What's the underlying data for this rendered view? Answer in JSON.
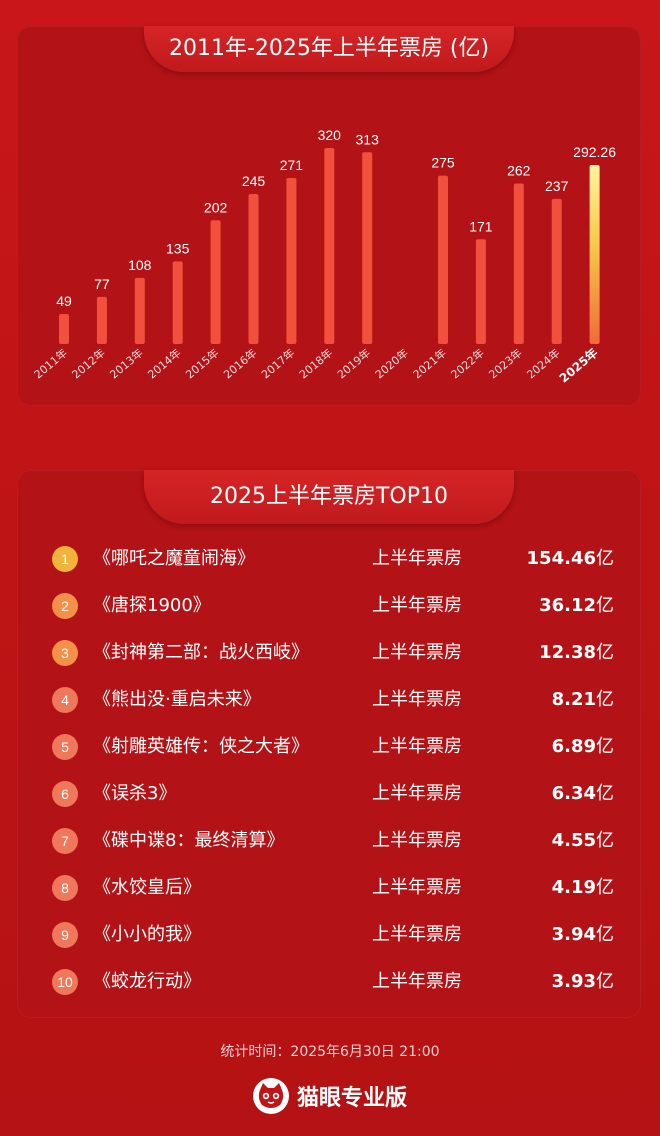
{
  "chart_data": {
    "type": "bar",
    "title": "2011年-2025年上半年票房 (亿)",
    "categories": [
      "2011年",
      "2012年",
      "2013年",
      "2014年",
      "2015年",
      "2016年",
      "2017年",
      "2018年",
      "2019年",
      "2020年",
      "2021年",
      "2022年",
      "2023年",
      "2024年",
      "2025年"
    ],
    "values": [
      49,
      77,
      108,
      135,
      202,
      245,
      271,
      320,
      313,
      null,
      275,
      171,
      262,
      237,
      292.26
    ],
    "value_labels": [
      "49",
      "77",
      "108",
      "135",
      "202",
      "245",
      "271",
      "320",
      "313",
      "",
      "275",
      "171",
      "262",
      "237",
      "292.26"
    ],
    "highlight_index": 14,
    "ylim": [
      0,
      320
    ],
    "grid": false,
    "bar_color": "#f0503c",
    "highlight_color": "#f7d24a"
  },
  "top10": {
    "title": "2025上半年票房TOP10",
    "rows": [
      {
        "rank": "1",
        "title": "《哪吒之魔童闹海》",
        "label": "上半年票房",
        "value": "154.46",
        "unit": "亿"
      },
      {
        "rank": "2",
        "title": "《唐探1900》",
        "label": "上半年票房",
        "value": "36.12",
        "unit": "亿"
      },
      {
        "rank": "3",
        "title": "《封神第二部：战火西岐》",
        "label": "上半年票房",
        "value": "12.38",
        "unit": "亿"
      },
      {
        "rank": "4",
        "title": "《熊出没·重启未来》",
        "label": "上半年票房",
        "value": "8.21",
        "unit": "亿"
      },
      {
        "rank": "5",
        "title": "《射雕英雄传：侠之大者》",
        "label": "上半年票房",
        "value": "6.89",
        "unit": "亿"
      },
      {
        "rank": "6",
        "title": "《误杀3》",
        "label": "上半年票房",
        "value": "6.34",
        "unit": "亿"
      },
      {
        "rank": "7",
        "title": "《碟中谍8：最终清算》",
        "label": "上半年票房",
        "value": "4.55",
        "unit": "亿"
      },
      {
        "rank": "8",
        "title": "《水饺皇后》",
        "label": "上半年票房",
        "value": "4.19",
        "unit": "亿"
      },
      {
        "rank": "9",
        "title": "《小小的我》",
        "label": "上半年票房",
        "value": "3.94",
        "unit": "亿"
      },
      {
        "rank": "10",
        "title": "《蛟龙行动》",
        "label": "上半年票房",
        "value": "3.93",
        "unit": "亿"
      }
    ]
  },
  "footer": {
    "time": "统计时间：2025年6月30日 21:00",
    "brand": "猫眼专业版",
    "brand_logo_icon": "cat-face-icon"
  }
}
